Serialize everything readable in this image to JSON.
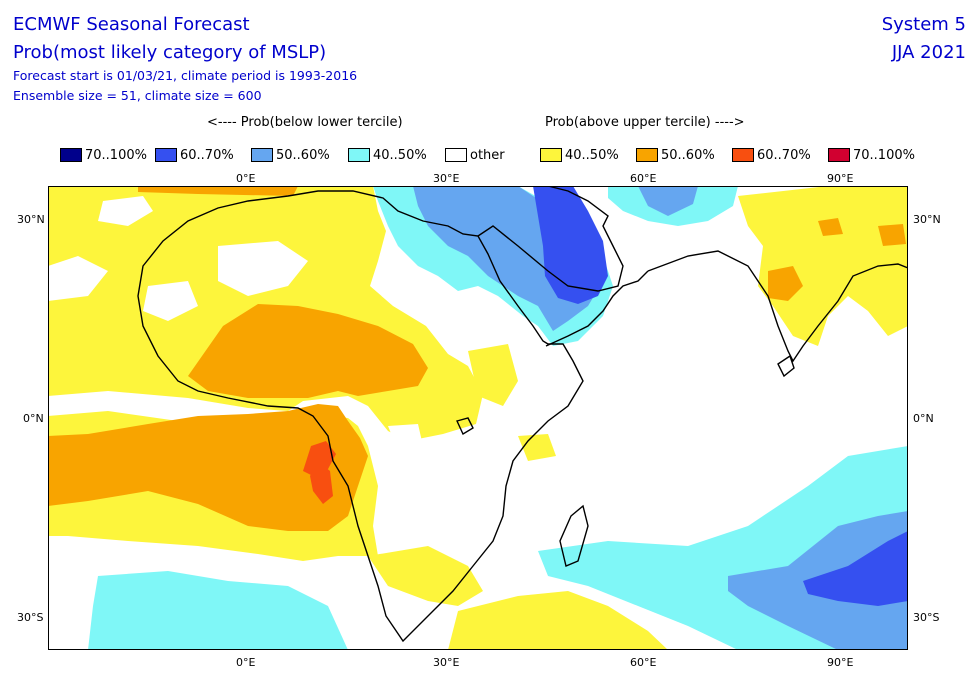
{
  "header": {
    "title": "ECMWF Seasonal Forecast",
    "subtitle": "Prob(most likely category of MSLP)",
    "forecast_info": "Forecast start is 01/03/21, climate period is 1993-2016",
    "ensemble_info": "Ensemble size = 51, climate size = 600",
    "system": "System 5",
    "season": "JJA 2021"
  },
  "legend": {
    "below_label": "<---- Prob(below lower tercile)",
    "above_label": "Prob(above upper tercile) ---->",
    "items": [
      {
        "label": "70..100%",
        "color": "#00008b"
      },
      {
        "label": "60..70%",
        "color": "#3550f0"
      },
      {
        "label": "50..60%",
        "color": "#65a6f0"
      },
      {
        "label": "40..50%",
        "color": "#7ff7f7"
      },
      {
        "label": "other",
        "color": "#ffffff"
      },
      {
        "label": "40..50%",
        "color": "#fdf53c"
      },
      {
        "label": "50..60%",
        "color": "#f8a400"
      },
      {
        "label": "60..70%",
        "color": "#f84f10"
      },
      {
        "label": "70..100%",
        "color": "#d10030"
      }
    ]
  },
  "axes": {
    "lon_labels": [
      "0°E",
      "30°E",
      "60°E",
      "90°E"
    ],
    "lat_labels": [
      "30°N",
      "0°N",
      "30°S"
    ]
  }
}
